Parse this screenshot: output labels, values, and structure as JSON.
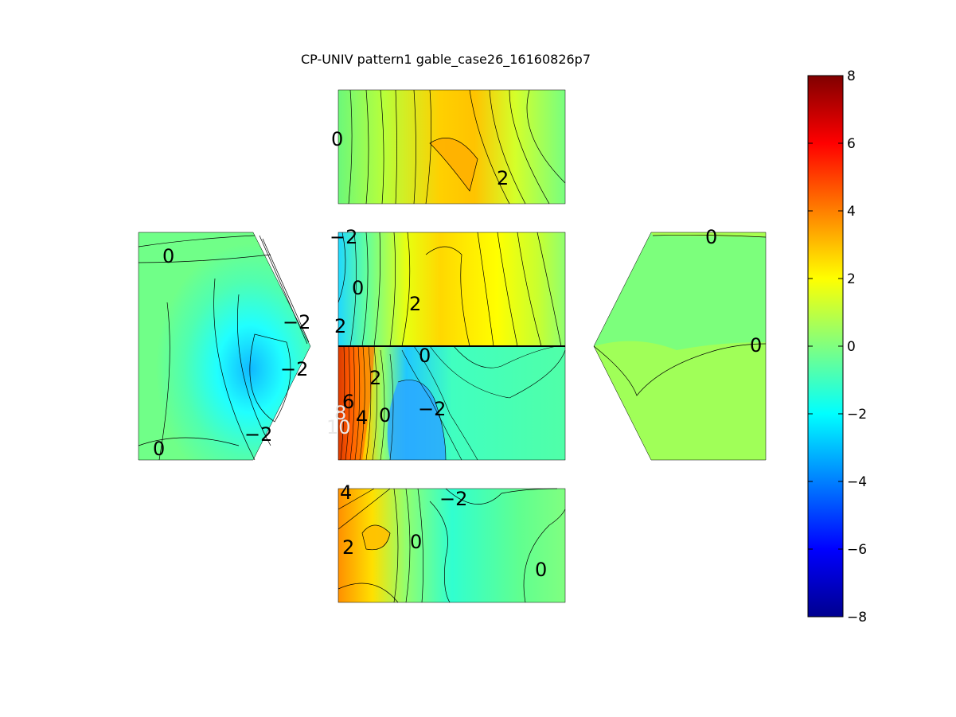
{
  "chart_data": {
    "type": "contour",
    "title": "CP-UNIV pattern1 gable_case26_16160826p7",
    "colorbar": {
      "range": [
        -8,
        8
      ],
      "ticks": [
        "8",
        "6",
        "4",
        "2",
        "0",
        "−2",
        "−4",
        "−6",
        "−8"
      ],
      "colormap": "jet"
    },
    "panels": [
      {
        "name": "top-wall",
        "labels": [
          "0",
          "2"
        ]
      },
      {
        "name": "left-gable",
        "labels": [
          "0",
          "−2",
          "−2",
          "−2",
          "0"
        ]
      },
      {
        "name": "roof-upper",
        "labels": [
          "−2",
          "0",
          "2",
          "2"
        ]
      },
      {
        "name": "roof-lower",
        "labels": [
          "0",
          "2",
          "6",
          "8",
          "10",
          "4",
          "0",
          "−2"
        ]
      },
      {
        "name": "right-gable",
        "labels": [
          "0",
          "0"
        ]
      },
      {
        "name": "bottom-wall",
        "labels": [
          "4",
          "−2",
          "2",
          "0",
          "0"
        ]
      }
    ]
  }
}
